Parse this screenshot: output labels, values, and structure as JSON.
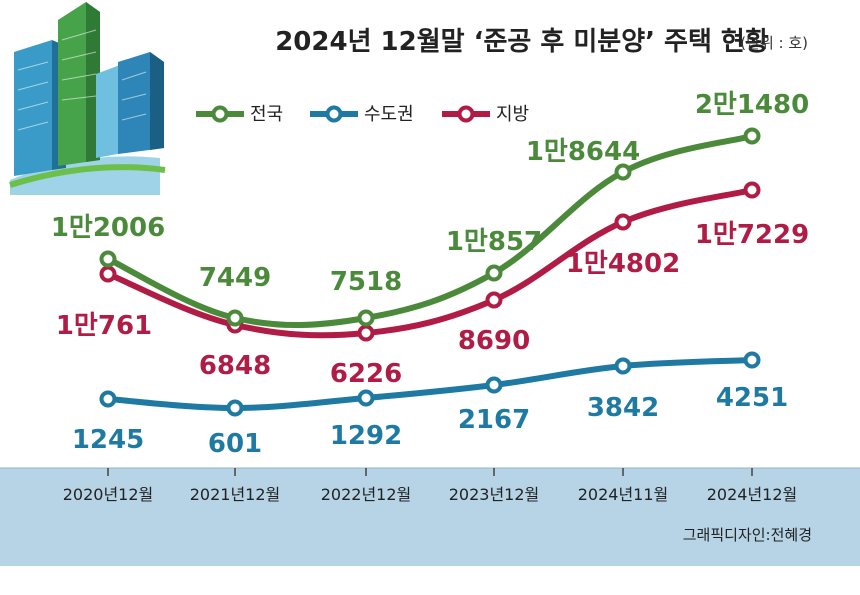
{
  "title": "2024년 12월말 ‘준공 후 미분양’ 주택 현황",
  "unit": "(단위 : 호)",
  "credit": "그래픽디자인:전혜경",
  "chart_data": {
    "type": "line",
    "categories": [
      "2020년12월",
      "2021년12월",
      "2022년12월",
      "2023년12월",
      "2024년11월",
      "2024년12월"
    ],
    "ylim": [
      0,
      24000
    ],
    "grid": false,
    "legend_position": "top-left",
    "series": [
      {
        "name": "전국",
        "color": "#4a8a3a",
        "values": [
          12006,
          7449,
          7518,
          10857,
          18644,
          21480
        ],
        "labels": [
          "1만2006",
          "7449",
          "7518",
          "1만857",
          "1만8644",
          "2만1480"
        ]
      },
      {
        "name": "수도권",
        "color": "#1f7aa3",
        "values": [
          1245,
          601,
          1292,
          2167,
          3842,
          4251
        ],
        "labels": [
          "1245",
          "601",
          "1292",
          "2167",
          "3842",
          "4251"
        ]
      },
      {
        "name": "지방",
        "color": "#b01c45",
        "values": [
          10761,
          6848,
          6226,
          8690,
          14802,
          17229
        ],
        "labels": [
          "1만761",
          "6848",
          "6226",
          "8690",
          "1만4802",
          "1만7229"
        ]
      }
    ]
  }
}
